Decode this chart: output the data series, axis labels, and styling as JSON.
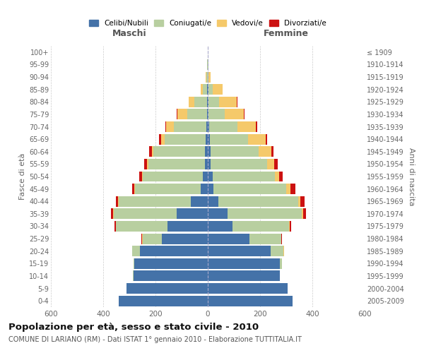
{
  "age_groups": [
    "0-4",
    "5-9",
    "10-14",
    "15-19",
    "20-24",
    "25-29",
    "30-34",
    "35-39",
    "40-44",
    "45-49",
    "50-54",
    "55-59",
    "60-64",
    "65-69",
    "70-74",
    "75-79",
    "80-84",
    "85-89",
    "90-94",
    "95-99",
    "100+"
  ],
  "birth_years": [
    "2005-2009",
    "2000-2004",
    "1995-1999",
    "1990-1994",
    "1985-1989",
    "1980-1984",
    "1975-1979",
    "1970-1974",
    "1965-1969",
    "1960-1964",
    "1955-1959",
    "1950-1954",
    "1945-1949",
    "1940-1944",
    "1935-1939",
    "1930-1934",
    "1925-1929",
    "1920-1924",
    "1915-1919",
    "1910-1914",
    "≤ 1909"
  ],
  "males": {
    "celibi": [
      340,
      310,
      285,
      280,
      260,
      175,
      155,
      120,
      65,
      28,
      18,
      12,
      10,
      8,
      6,
      4,
      2,
      2,
      1,
      1,
      0
    ],
    "coniugati": [
      0,
      1,
      2,
      5,
      28,
      75,
      195,
      240,
      275,
      250,
      230,
      215,
      198,
      158,
      125,
      75,
      50,
      18,
      4,
      2,
      0
    ],
    "vedovi": [
      0,
      0,
      0,
      0,
      0,
      1,
      1,
      2,
      2,
      3,
      4,
      5,
      6,
      12,
      28,
      38,
      22,
      8,
      2,
      0,
      0
    ],
    "divorziati": [
      0,
      0,
      0,
      0,
      0,
      2,
      5,
      8,
      10,
      8,
      10,
      12,
      10,
      8,
      4,
      2,
      0,
      0,
      0,
      0,
      0
    ]
  },
  "females": {
    "nubili": [
      325,
      305,
      275,
      275,
      240,
      160,
      95,
      75,
      40,
      22,
      18,
      12,
      10,
      8,
      5,
      4,
      2,
      2,
      1,
      1,
      0
    ],
    "coniugate": [
      0,
      1,
      2,
      8,
      50,
      120,
      215,
      285,
      305,
      278,
      238,
      215,
      185,
      145,
      108,
      62,
      42,
      16,
      3,
      1,
      0
    ],
    "vedove": [
      0,
      0,
      0,
      0,
      1,
      2,
      3,
      5,
      8,
      15,
      18,
      28,
      48,
      68,
      72,
      72,
      68,
      38,
      8,
      2,
      0
    ],
    "divorziate": [
      0,
      0,
      0,
      0,
      1,
      2,
      5,
      12,
      18,
      20,
      12,
      12,
      8,
      5,
      3,
      2,
      1,
      0,
      0,
      0,
      0
    ]
  },
  "colors": {
    "celibi_nubili": "#4472a8",
    "coniugati": "#b8cfa0",
    "vedovi": "#f5c96a",
    "divorziati": "#cc1111"
  },
  "title": "Popolazione per età, sesso e stato civile - 2010",
  "subtitle": "COMUNE DI LARIANO (RM) - Dati ISTAT 1° gennaio 2010 - Elaborazione TUTTITALIA.IT",
  "xlabel_left": "Maschi",
  "xlabel_right": "Femmine",
  "ylabel_left": "Fasce di età",
  "ylabel_right": "Anni di nascita",
  "xlim": 600,
  "xticks": [
    -600,
    -400,
    -200,
    0,
    200,
    400,
    600
  ],
  "legend_labels": [
    "Celibi/Nubili",
    "Coniugati/e",
    "Vedovi/e",
    "Divorziati/e"
  ],
  "background_color": "#ffffff",
  "grid_color": "#cccccc"
}
